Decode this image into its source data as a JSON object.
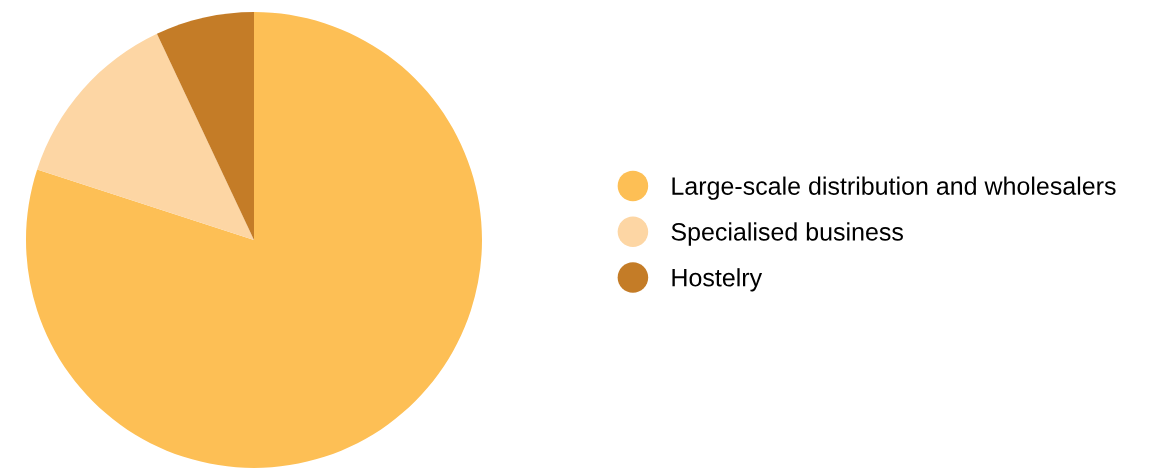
{
  "chart_data": {
    "type": "pie",
    "categories": [
      "Large-scale distribution and wholesalers",
      "Specialised business",
      "Hostelry"
    ],
    "values": [
      80,
      13,
      7
    ],
    "colors": [
      "#fdbf55",
      "#fdd6a4",
      "#c47c27"
    ],
    "legend": "right"
  }
}
